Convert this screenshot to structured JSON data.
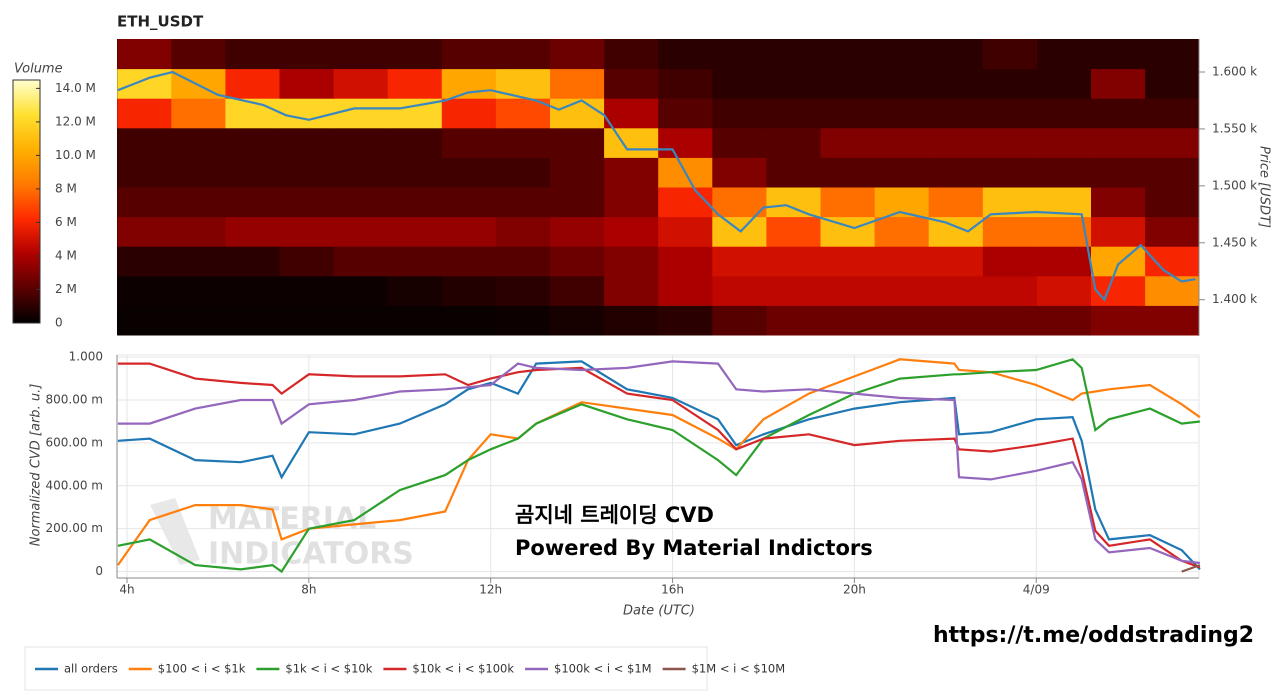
{
  "chart_data": [
    {
      "type": "heatmap",
      "title": "ETH_USDT",
      "y_label": "Price [USDT]",
      "colorbar_title": "Volume",
      "xlim": [
        3.78,
        27.58
      ],
      "ylim": [
        1369,
        1629
      ],
      "yticks": [
        {
          "value": 1400,
          "label": "1.400 k"
        },
        {
          "value": 1450,
          "label": "1.450 k"
        },
        {
          "value": 1500,
          "label": "1.500 k"
        },
        {
          "value": 1550,
          "label": "1.550 k"
        },
        {
          "value": 1600,
          "label": "1.600 k"
        }
      ],
      "zlim": [
        0,
        14500000.0
      ],
      "zticks": [
        0,
        {
          "value": 2000000.0,
          "label": "2 M"
        },
        {
          "value": 4000000.0,
          "label": "4 M"
        },
        {
          "value": 6000000.0,
          "label": "6 M"
        },
        {
          "value": 8000000.0,
          "label": "8 M"
        },
        {
          "value": 10000000.0,
          "label": "10.0 M"
        },
        {
          "value": 12000000.0,
          "label": "12.0 M"
        },
        {
          "value": 14000000.0,
          "label": "14.0 M"
        }
      ],
      "colorscale": [
        "#000000",
        "#5a0000",
        "#b00000",
        "#ff2a00",
        "#ff7a00",
        "#ffb000",
        "#ffe030",
        "#ffffd0"
      ],
      "x": [
        4.38,
        5.57,
        6.76,
        7.95,
        9.14,
        10.33,
        11.52,
        12.71,
        13.9,
        15.09,
        16.28,
        17.47,
        18.66,
        19.85,
        21.04,
        22.23,
        23.42,
        24.61,
        25.8,
        26.99
      ],
      "y": [
        1382,
        1408,
        1434,
        1460,
        1486,
        1512,
        1538,
        1564,
        1590,
        1616
      ],
      "z": [
        [
          200000.0,
          200000.0,
          200000.0,
          200000.0,
          200000.0,
          200000.0,
          200000.0,
          300000.0,
          500000.0,
          800000.0,
          1000000.0,
          2000000.0,
          2500000.0,
          2500000.0,
          2500000.0,
          2500000.0,
          2500000.0,
          2500000.0,
          3000000.0,
          3000000.0
        ],
        [
          300000.0,
          300000.0,
          300000.0,
          300000.0,
          300000.0,
          500000.0,
          800000.0,
          1000000.0,
          1500000.0,
          3000000.0,
          4000000.0,
          4500000.0,
          4500000.0,
          4500000.0,
          4500000.0,
          4500000.0,
          4500000.0,
          5000000.0,
          6000000.0,
          9000000.0
        ],
        [
          1000000.0,
          1000000.0,
          1000000.0,
          1500000.0,
          2000000.0,
          2000000.0,
          2000000.0,
          2000000.0,
          2500000.0,
          3000000.0,
          4000000.0,
          5000000.0,
          5000000.0,
          5000000.0,
          5000000.0,
          5000000.0,
          4000000.0,
          4000000.0,
          10000000.0,
          6000000.0
        ],
        [
          3000000.0,
          3000000.0,
          3500000.0,
          3500000.0,
          3500000.0,
          3500000.0,
          3500000.0,
          3000000.0,
          3500000.0,
          4000000.0,
          5000000.0,
          11000000.0,
          7000000.0,
          11000000.0,
          8000000.0,
          11000000.0,
          8000000.0,
          8000000.0,
          5000000.0,
          3000000.0
        ],
        [
          2000000.0,
          2000000.0,
          2000000.0,
          2000000.0,
          2000000.0,
          2000000.0,
          2000000.0,
          2000000.0,
          2000000.0,
          3000000.0,
          6000000.0,
          8000000.0,
          11000000.0,
          8000000.0,
          10000000.0,
          8000000.0,
          11000000.0,
          11000000.0,
          3000000.0,
          2000000.0
        ],
        [
          1500000.0,
          1500000.0,
          1500000.0,
          1500000.0,
          1500000.0,
          1500000.0,
          1500000.0,
          1500000.0,
          2000000.0,
          3000000.0,
          9000000.0,
          3000000.0,
          2000000.0,
          2000000.0,
          2000000.0,
          2000000.0,
          2000000.0,
          2000000.0,
          2000000.0,
          2000000.0
        ],
        [
          1500000.0,
          1500000.0,
          1500000.0,
          1500000.0,
          1500000.0,
          1500000.0,
          2000000.0,
          2000000.0,
          2000000.0,
          11000000.0,
          4000000.0,
          2000000.0,
          2000000.0,
          3000000.0,
          3000000.0,
          3000000.0,
          3000000.0,
          3000000.0,
          3000000.0,
          3000000.0
        ],
        [
          6000000.0,
          8000000.0,
          12000000.0,
          12000000.0,
          12000000.0,
          12000000.0,
          6000000.0,
          7000000.0,
          11000000.0,
          4000000.0,
          2000000.0,
          1500000.0,
          1500000.0,
          1500000.0,
          1500000.0,
          1500000.0,
          1500000.0,
          1500000.0,
          1500000.0,
          1500000.0
        ],
        [
          12000000.0,
          10000000.0,
          6000000.0,
          4000000.0,
          5000000.0,
          6000000.0,
          10000000.0,
          11000000.0,
          8000000.0,
          2000000.0,
          1500000.0,
          1000000.0,
          1000000.0,
          1000000.0,
          1000000.0,
          1000000.0,
          1000000.0,
          1000000.0,
          3000000.0,
          1000000.0
        ],
        [
          3000000.0,
          2000000.0,
          1500000.0,
          1500000.0,
          1500000.0,
          1500000.0,
          2000000.0,
          2000000.0,
          2500000.0,
          1500000.0,
          1000000.0,
          1000000.0,
          1000000.0,
          1000000.0,
          1000000.0,
          1000000.0,
          1500000.0,
          1000000.0,
          1000000.0,
          1000000.0
        ]
      ],
      "line": {
        "color": "#3a87c0",
        "x": [
          3.8,
          4.5,
          5,
          6,
          7,
          7.5,
          8,
          9,
          10,
          11,
          11.5,
          12,
          13,
          13.5,
          14,
          14.5,
          15,
          15.5,
          16,
          16.5,
          17,
          17.5,
          18,
          18.5,
          19,
          20,
          21,
          22,
          22.5,
          23,
          24,
          25,
          25.3,
          25.5,
          25.8,
          26.3,
          26.8,
          27.2,
          27.5
        ],
        "values": [
          1584,
          1595,
          1600,
          1580,
          1571,
          1562,
          1558,
          1568,
          1568,
          1575,
          1582,
          1584,
          1575,
          1567,
          1575,
          1562,
          1532,
          1532,
          1532,
          1496,
          1475,
          1460,
          1481,
          1483,
          1475,
          1463,
          1477,
          1468,
          1460,
          1475,
          1477,
          1475,
          1409,
          1400,
          1431,
          1448,
          1426,
          1416,
          1418
        ]
      }
    },
    {
      "type": "line",
      "x_label": "Date (UTC)",
      "y_label": "Normalized CVD [arb. u.]",
      "grid": true,
      "legend": "bottom",
      "xlim": [
        3.78,
        27.58
      ],
      "ylim": [
        -0.03,
        1.01
      ],
      "xticks": [
        {
          "value": 4,
          "label": "4h"
        },
        {
          "value": 8,
          "label": "8h"
        },
        {
          "value": 12,
          "label": "12h"
        },
        {
          "value": 16,
          "label": "16h"
        },
        {
          "value": 20,
          "label": "20h"
        },
        {
          "value": 24,
          "label": "4/09"
        }
      ],
      "yticks": [
        0,
        {
          "value": 0.2,
          "label": "200.00 m"
        },
        {
          "value": 0.4,
          "label": "400.00 m"
        },
        {
          "value": 0.6,
          "label": "600.00 m"
        },
        {
          "value": 0.8,
          "label": "800.00 m"
        },
        {
          "value": 1,
          "label": "1.000"
        }
      ],
      "x": [
        3.8,
        4.5,
        5.5,
        6.5,
        7.2,
        7.4,
        8,
        9,
        10,
        11,
        11.5,
        12,
        12.6,
        13,
        14,
        15,
        16,
        17,
        17.4,
        18,
        19,
        20,
        21,
        22.2,
        22.3,
        23,
        24,
        24.8,
        25,
        25.3,
        25.6,
        26.5,
        27.2,
        27.6
      ],
      "series": [
        {
          "name": "all orders",
          "color": "#1f77b4",
          "values": [
            0.61,
            0.62,
            0.52,
            0.51,
            0.54,
            0.44,
            0.65,
            0.64,
            0.69,
            0.78,
            0.85,
            0.88,
            0.83,
            0.97,
            0.98,
            0.85,
            0.81,
            0.71,
            0.59,
            0.64,
            0.71,
            0.76,
            0.79,
            0.81,
            0.64,
            0.65,
            0.71,
            0.72,
            0.61,
            0.29,
            0.15,
            0.17,
            0.1,
            0.01
          ]
        },
        {
          "name": "$100 < i < $1k",
          "color": "#ff7f0e",
          "values": [
            0.03,
            0.24,
            0.31,
            0.31,
            0.29,
            0.15,
            0.2,
            0.22,
            0.24,
            0.28,
            0.52,
            0.64,
            0.62,
            0.69,
            0.79,
            0.76,
            0.73,
            0.62,
            0.57,
            0.71,
            0.83,
            0.91,
            0.99,
            0.97,
            0.94,
            0.93,
            0.87,
            0.8,
            0.83,
            0.84,
            0.85,
            0.87,
            0.78,
            0.72
          ]
        },
        {
          "name": "$1k < i < $10k",
          "color": "#2ca02c",
          "values": [
            0.12,
            0.15,
            0.03,
            0.01,
            0.03,
            0,
            0.2,
            0.24,
            0.38,
            0.45,
            0.52,
            0.57,
            0.62,
            0.69,
            0.78,
            0.71,
            0.66,
            0.52,
            0.45,
            0.62,
            0.73,
            0.83,
            0.9,
            0.92,
            0.92,
            0.93,
            0.94,
            0.99,
            0.95,
            0.66,
            0.71,
            0.76,
            0.69,
            0.7
          ]
        },
        {
          "name": "$10k < i < $100k",
          "color": "#d62728",
          "values": [
            0.97,
            0.97,
            0.9,
            0.88,
            0.87,
            0.83,
            0.92,
            0.91,
            0.91,
            0.92,
            0.87,
            0.9,
            0.93,
            0.94,
            0.95,
            0.83,
            0.8,
            0.66,
            0.57,
            0.62,
            0.64,
            0.59,
            0.61,
            0.62,
            0.57,
            0.56,
            0.59,
            0.62,
            0.47,
            0.19,
            0.12,
            0.15,
            0.05,
            0.02
          ]
        },
        {
          "name": "$100k < i < $1M",
          "color": "#9467bd",
          "values": [
            0.69,
            0.69,
            0.76,
            0.8,
            0.8,
            0.69,
            0.78,
            0.8,
            0.84,
            0.85,
            0.86,
            0.87,
            0.97,
            0.95,
            0.94,
            0.95,
            0.98,
            0.97,
            0.85,
            0.84,
            0.85,
            0.83,
            0.81,
            0.8,
            0.44,
            0.43,
            0.47,
            0.51,
            0.43,
            0.15,
            0.09,
            0.11,
            0.05,
            0.04
          ]
        },
        {
          "name": "$1M < i < $10M",
          "color": "#8c564b",
          "values": [
            null,
            null,
            null,
            null,
            null,
            null,
            null,
            null,
            null,
            null,
            null,
            null,
            null,
            null,
            null,
            null,
            null,
            null,
            null,
            null,
            null,
            null,
            null,
            null,
            null,
            null,
            null,
            null,
            null,
            null,
            null,
            null,
            0,
            0.03
          ]
        }
      ],
      "watermark": [
        "MATERIAL",
        "INDICATORS"
      ],
      "annotations": [
        "곰지네 트레이딩 CVD",
        "Powered By Material Indictors"
      ]
    }
  ],
  "link": "https://t.me/oddstrading2"
}
